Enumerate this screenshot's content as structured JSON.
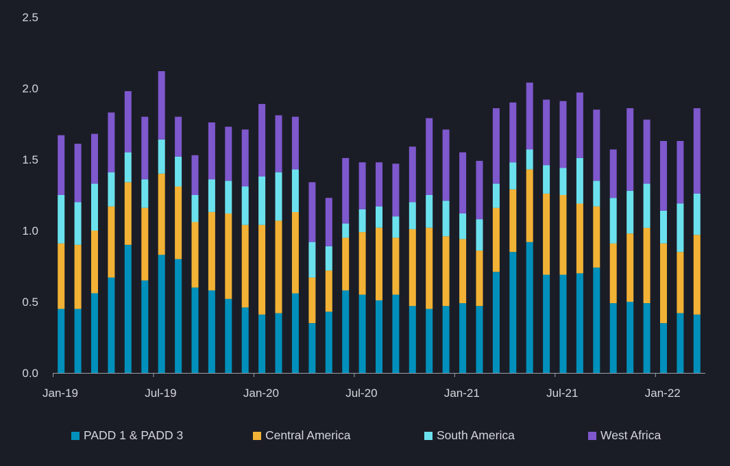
{
  "chart_data": {
    "type": "bar",
    "stacked": true,
    "title": "",
    "xlabel": "",
    "ylabel": "",
    "ylim": [
      0,
      2.5
    ],
    "yticks": [
      "0.0",
      "0.5",
      "1.0",
      "1.5",
      "2.0",
      "2.5"
    ],
    "grid": false,
    "legend_position": "bottom",
    "categories": [
      "Jan-19",
      "Feb-19",
      "Mar-19",
      "Apr-19",
      "May-19",
      "Jun-19",
      "Jul-19",
      "Aug-19",
      "Sep-19",
      "Oct-19",
      "Nov-19",
      "Dec-19",
      "Jan-20",
      "Feb-20",
      "Mar-20",
      "Apr-20",
      "May-20",
      "Jun-20",
      "Jul-20",
      "Aug-20",
      "Sep-20",
      "Oct-20",
      "Nov-20",
      "Dec-20",
      "Jan-21",
      "Feb-21",
      "Mar-21",
      "Apr-21",
      "May-21",
      "Jun-21",
      "Jul-21",
      "Aug-21",
      "Sep-21",
      "Oct-21",
      "Nov-21",
      "Dec-21",
      "Jan-22",
      "Feb-22",
      "Mar-22"
    ],
    "xtick_labels": [
      {
        "index": 0,
        "label": "Jan-19"
      },
      {
        "index": 6,
        "label": "Jul-19"
      },
      {
        "index": 12,
        "label": "Jan-20"
      },
      {
        "index": 18,
        "label": "Jul-20"
      },
      {
        "index": 24,
        "label": "Jan-21"
      },
      {
        "index": 30,
        "label": "Jul-21"
      },
      {
        "index": 36,
        "label": "Jan-22"
      }
    ],
    "series": [
      {
        "name": "PADD 1 & PADD 3",
        "color": "#0090bb",
        "values": [
          0.45,
          0.45,
          0.56,
          0.67,
          0.9,
          0.65,
          0.83,
          0.8,
          0.6,
          0.58,
          0.52,
          0.46,
          0.41,
          0.42,
          0.56,
          0.35,
          0.43,
          0.58,
          0.55,
          0.51,
          0.55,
          0.47,
          0.45,
          0.47,
          0.49,
          0.47,
          0.71,
          0.85,
          0.92,
          0.69,
          0.69,
          0.7,
          0.74,
          0.49,
          0.5,
          0.49,
          0.35,
          0.42,
          0.41
        ]
      },
      {
        "name": "Central America",
        "color": "#f2b236",
        "values": [
          0.46,
          0.45,
          0.44,
          0.5,
          0.44,
          0.51,
          0.57,
          0.51,
          0.46,
          0.55,
          0.6,
          0.58,
          0.63,
          0.65,
          0.57,
          0.32,
          0.29,
          0.37,
          0.44,
          0.51,
          0.4,
          0.54,
          0.57,
          0.49,
          0.45,
          0.39,
          0.45,
          0.44,
          0.51,
          0.57,
          0.56,
          0.49,
          0.43,
          0.42,
          0.48,
          0.53,
          0.56,
          0.43,
          0.56
        ]
      },
      {
        "name": "South America",
        "color": "#6ce1ee",
        "values": [
          0.34,
          0.3,
          0.33,
          0.24,
          0.21,
          0.2,
          0.24,
          0.21,
          0.19,
          0.23,
          0.23,
          0.27,
          0.34,
          0.34,
          0.3,
          0.25,
          0.17,
          0.1,
          0.16,
          0.15,
          0.15,
          0.19,
          0.23,
          0.25,
          0.18,
          0.22,
          0.17,
          0.19,
          0.14,
          0.2,
          0.19,
          0.32,
          0.18,
          0.32,
          0.3,
          0.31,
          0.23,
          0.34,
          0.29
        ]
      },
      {
        "name": "West Africa",
        "color": "#7e58cd",
        "values": [
          0.42,
          0.41,
          0.35,
          0.42,
          0.43,
          0.44,
          0.48,
          0.28,
          0.28,
          0.4,
          0.38,
          0.4,
          0.51,
          0.4,
          0.37,
          0.42,
          0.34,
          0.46,
          0.33,
          0.31,
          0.37,
          0.39,
          0.54,
          0.5,
          0.43,
          0.41,
          0.53,
          0.42,
          0.47,
          0.46,
          0.47,
          0.46,
          0.5,
          0.34,
          0.58,
          0.45,
          0.49,
          0.44,
          0.6
        ]
      }
    ]
  }
}
